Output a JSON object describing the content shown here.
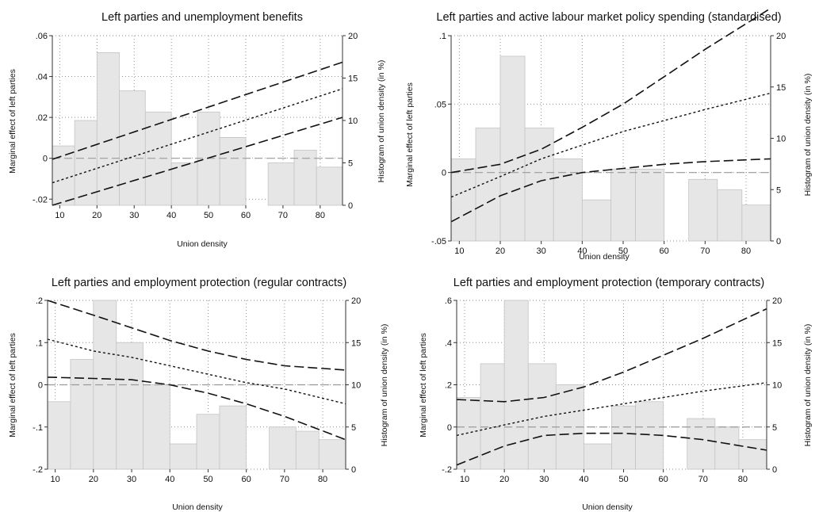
{
  "chart_data": [
    {
      "type": "line",
      "title": "Left parties and unemployment benefits",
      "xlabel": "Union density",
      "ylabel": "Marginal effect of left parties",
      "y2label": "Histogram of union density (in %)",
      "xlim": [
        8,
        86
      ],
      "ylim": [
        -0.023,
        0.06
      ],
      "y2lim": [
        0,
        20
      ],
      "xticks": [
        10,
        20,
        30,
        40,
        50,
        60,
        70,
        80
      ],
      "yticks": [
        -0.02,
        0,
        0.02,
        0.04,
        0.06
      ],
      "ytick_labels": [
        "-.02",
        "0",
        ".02",
        ".04",
        ".06"
      ],
      "y2ticks": [
        0,
        5,
        10,
        15,
        20
      ],
      "y2tick_labels": [
        "0",
        "5",
        "10",
        "15",
        "20"
      ],
      "reference_line": 0,
      "grid": true,
      "histogram": {
        "bins": [
          [
            8,
            14
          ],
          [
            14,
            20
          ],
          [
            20,
            26
          ],
          [
            26,
            33
          ],
          [
            33,
            40
          ],
          [
            40,
            47
          ],
          [
            47,
            53
          ],
          [
            53,
            60
          ],
          [
            66,
            73
          ],
          [
            73,
            79
          ],
          [
            79,
            86
          ]
        ],
        "values": [
          7,
          10,
          18,
          13.5,
          11,
          5,
          11,
          8,
          5,
          6.5,
          4.5
        ]
      },
      "series": [
        {
          "style": "long-dash",
          "x": [
            8,
            86
          ],
          "y": [
            -0.0005,
            0.047
          ]
        },
        {
          "style": "short-dash",
          "x": [
            8,
            86
          ],
          "y": [
            -0.012,
            0.034
          ]
        },
        {
          "style": "long-dash",
          "x": [
            8,
            86
          ],
          "y": [
            -0.023,
            0.02
          ]
        }
      ]
    },
    {
      "type": "line",
      "title": "Left parties and active labour market policy spending (standardised)",
      "xlabel": "Union density",
      "ylabel": "Marginal effect of left parties",
      "y2label": "Histogram of union density (in %)",
      "xlim": [
        8,
        86
      ],
      "ylim": [
        -0.05,
        0.1
      ],
      "y2lim": [
        0,
        20
      ],
      "xticks": [
        10,
        20,
        30,
        40,
        50,
        60,
        70,
        80
      ],
      "yticks": [
        -0.05,
        0,
        0.05,
        0.1
      ],
      "ytick_labels": [
        "-.05",
        "0",
        ".05",
        ".1"
      ],
      "y2ticks": [
        0,
        5,
        10,
        15,
        20
      ],
      "y2tick_labels": [
        "0",
        "5",
        "10",
        "15",
        "20"
      ],
      "reference_line": 0,
      "grid": true,
      "histogram": {
        "bins": [
          [
            8,
            14
          ],
          [
            14,
            20
          ],
          [
            20,
            26
          ],
          [
            26,
            33
          ],
          [
            33,
            40
          ],
          [
            40,
            47
          ],
          [
            47,
            53
          ],
          [
            53,
            60
          ],
          [
            66,
            73
          ],
          [
            73,
            79
          ],
          [
            79,
            86
          ]
        ],
        "values": [
          8,
          11,
          18,
          11,
          8,
          4,
          7,
          7,
          6,
          5,
          3.5
        ]
      },
      "series": [
        {
          "style": "long-dash",
          "x": [
            8,
            20,
            30,
            40,
            50,
            60,
            70,
            86
          ],
          "y": [
            0,
            0.006,
            0.017,
            0.033,
            0.05,
            0.07,
            0.09,
            0.12
          ]
        },
        {
          "style": "short-dash",
          "x": [
            8,
            20,
            30,
            40,
            50,
            60,
            70,
            86
          ],
          "y": [
            -0.018,
            -0.003,
            0.01,
            0.02,
            0.03,
            0.038,
            0.046,
            0.058
          ]
        },
        {
          "style": "long-dash",
          "x": [
            8,
            20,
            30,
            40,
            50,
            60,
            70,
            86
          ],
          "y": [
            -0.036,
            -0.017,
            -0.006,
            0,
            0.003,
            0.006,
            0.008,
            0.01
          ]
        }
      ]
    },
    {
      "type": "line",
      "title": "Left parties and employment protection (regular contracts)",
      "xlabel": "Union density",
      "ylabel": "Marginal effect of left parties",
      "y2label": "Histogram of union density (in %)",
      "xlim": [
        8,
        86
      ],
      "ylim": [
        -0.2,
        0.2
      ],
      "y2lim": [
        0,
        20
      ],
      "xticks": [
        10,
        20,
        30,
        40,
        50,
        60,
        70,
        80
      ],
      "yticks": [
        -0.2,
        -0.1,
        0,
        0.1,
        0.2
      ],
      "ytick_labels": [
        "-.2",
        "-.1",
        "0",
        ".1",
        ".2"
      ],
      "y2ticks": [
        0,
        5,
        10,
        15,
        20
      ],
      "y2tick_labels": [
        "0",
        "5",
        "10",
        "15",
        "20"
      ],
      "reference_line": 0,
      "grid": true,
      "histogram": {
        "bins": [
          [
            8,
            14
          ],
          [
            14,
            20
          ],
          [
            20,
            26
          ],
          [
            26,
            33
          ],
          [
            33,
            40
          ],
          [
            40,
            47
          ],
          [
            47,
            53
          ],
          [
            53,
            60
          ],
          [
            66,
            73
          ],
          [
            73,
            79
          ],
          [
            79,
            86
          ]
        ],
        "values": [
          8,
          13,
          20,
          15,
          10,
          3,
          6.5,
          7.5,
          5,
          4.5,
          3.5
        ]
      },
      "series": [
        {
          "style": "long-dash",
          "x": [
            8,
            20,
            30,
            40,
            50,
            60,
            70,
            86
          ],
          "y": [
            0.2,
            0.165,
            0.135,
            0.105,
            0.08,
            0.06,
            0.045,
            0.035
          ]
        },
        {
          "style": "short-dash",
          "x": [
            8,
            20,
            30,
            40,
            50,
            60,
            70,
            86
          ],
          "y": [
            0.108,
            0.08,
            0.065,
            0.045,
            0.025,
            0.005,
            -0.01,
            -0.045
          ]
        },
        {
          "style": "long-dash",
          "x": [
            8,
            20,
            30,
            40,
            50,
            60,
            70,
            86
          ],
          "y": [
            0.018,
            0.015,
            0.012,
            0,
            -0.02,
            -0.045,
            -0.075,
            -0.13
          ]
        }
      ]
    },
    {
      "type": "line",
      "title": "Left parties and employment protection (temporary contracts)",
      "xlabel": "Union density",
      "ylabel": "Marginal effect of left parties",
      "y2label": "Histogram of union density (in %)",
      "xlim": [
        8,
        86
      ],
      "ylim": [
        -0.2,
        0.6
      ],
      "y2lim": [
        0,
        20
      ],
      "xticks": [
        10,
        20,
        30,
        40,
        50,
        60,
        70,
        80
      ],
      "yticks": [
        -0.2,
        0,
        0.2,
        0.4,
        0.6
      ],
      "ytick_labels": [
        "-.2",
        "0",
        ".2",
        ".4",
        ".6"
      ],
      "y2ticks": [
        0,
        5,
        10,
        15,
        20
      ],
      "y2tick_labels": [
        "0",
        "5",
        "10",
        "15",
        "20"
      ],
      "reference_line": 0,
      "grid": true,
      "histogram": {
        "bins": [
          [
            8,
            14
          ],
          [
            14,
            20
          ],
          [
            20,
            26
          ],
          [
            26,
            33
          ],
          [
            33,
            40
          ],
          [
            40,
            47
          ],
          [
            47,
            53
          ],
          [
            53,
            60
          ],
          [
            66,
            73
          ],
          [
            73,
            79
          ],
          [
            79,
            86
          ]
        ],
        "values": [
          8.5,
          12.5,
          20,
          12.5,
          10,
          3,
          7.5,
          8,
          6,
          5,
          3.5
        ]
      },
      "series": [
        {
          "style": "long-dash",
          "x": [
            8,
            20,
            30,
            40,
            50,
            60,
            70,
            86
          ],
          "y": [
            0.13,
            0.12,
            0.14,
            0.19,
            0.26,
            0.34,
            0.42,
            0.56
          ]
        },
        {
          "style": "short-dash",
          "x": [
            8,
            20,
            30,
            40,
            50,
            60,
            70,
            86
          ],
          "y": [
            -0.04,
            0.01,
            0.05,
            0.08,
            0.11,
            0.14,
            0.17,
            0.21
          ]
        },
        {
          "style": "long-dash",
          "x": [
            8,
            20,
            30,
            40,
            50,
            60,
            70,
            86
          ],
          "y": [
            -0.18,
            -0.09,
            -0.04,
            -0.03,
            -0.03,
            -0.04,
            -0.06,
            -0.11
          ]
        }
      ]
    }
  ]
}
